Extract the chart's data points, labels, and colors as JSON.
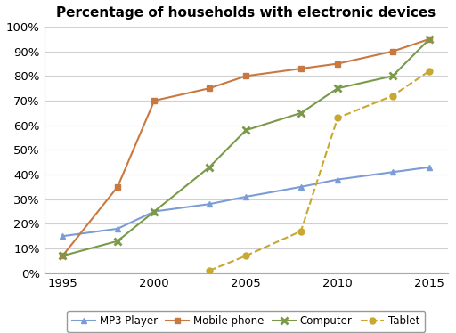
{
  "title": "Percentage of households with electronic devices",
  "years": [
    1995,
    1998,
    2000,
    2003,
    2005,
    2008,
    2010,
    2013,
    2015
  ],
  "mp3_player": [
    15,
    18,
    25,
    28,
    31,
    35,
    38,
    41,
    43
  ],
  "mobile_phone": [
    7,
    35,
    70,
    75,
    80,
    83,
    85,
    90,
    95
  ],
  "computer": [
    7,
    13,
    25,
    43,
    58,
    65,
    75,
    80,
    95
  ],
  "tablet": [
    null,
    null,
    null,
    1,
    7,
    17,
    63,
    72,
    82
  ],
  "mp3_color": "#7b9cd4",
  "mobile_color": "#c87941",
  "computer_color": "#7a9a4a",
  "tablet_color": "#c8a830",
  "ylim": [
    0,
    100
  ],
  "xlim": [
    1994,
    2016
  ],
  "ytick_labels": [
    "0%",
    "10%",
    "20%",
    "30%",
    "40%",
    "50%",
    "60%",
    "70%",
    "80%",
    "90%",
    "100%"
  ],
  "ytick_values": [
    0,
    10,
    20,
    30,
    40,
    50,
    60,
    70,
    80,
    90,
    100
  ],
  "xtick_values": [
    1995,
    2000,
    2005,
    2010,
    2015
  ],
  "legend_labels": [
    "MP3 Player",
    "Mobile phone",
    "Computer",
    "Tablet"
  ],
  "background_color": "#ffffff",
  "grid_color": "#d0d0d0"
}
